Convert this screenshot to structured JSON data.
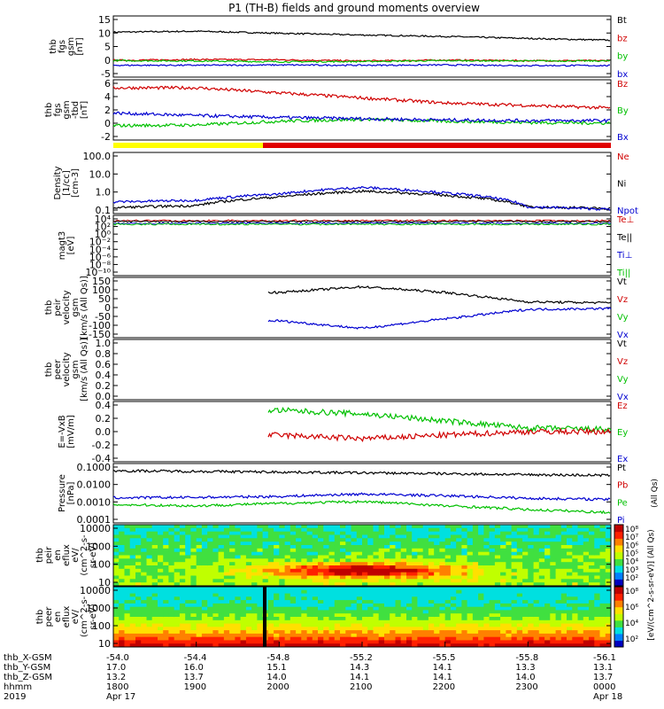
{
  "title": "P1 (TH-B) fields and ground moments overview",
  "panels": [
    {
      "id": "fgs-gsm",
      "ylabel": [
        "thb",
        "fgs",
        "gsm",
        "[nT]"
      ],
      "yticks": [
        "15",
        "10",
        "5",
        "0",
        "-5"
      ],
      "ylim": [
        -5,
        15
      ],
      "legend": [
        {
          "label": "Bt",
          "color": "#000000"
        },
        {
          "label": "bz",
          "color": "#d00000"
        },
        {
          "label": "by",
          "color": "#00c000"
        },
        {
          "label": "bx",
          "color": "#0000d0"
        }
      ]
    },
    {
      "id": "fgs-gse",
      "ylabel": [
        "thb",
        "fgs",
        "gsm",
        "-tbd",
        "[nT]"
      ],
      "yticks": [
        "6",
        "4",
        "2",
        "0",
        "-2"
      ],
      "ylim": [
        -3,
        6
      ],
      "legend": [
        {
          "label": "Bz",
          "color": "#d00000"
        },
        {
          "label": "By",
          "color": "#00c000"
        },
        {
          "label": "Bx",
          "color": "#0000d0"
        }
      ]
    },
    {
      "id": "density",
      "ylabel": [
        "Density",
        "[1/cc]",
        "[cm-3]"
      ],
      "yticks": [
        "100.0",
        "10.0",
        "1.0",
        "0.1"
      ],
      "log": true,
      "legend": [
        {
          "label": "Ne",
          "color": "#d00000"
        },
        {
          "label": "Ni",
          "color": "#000000"
        },
        {
          "label": "Npot",
          "color": "#0000d0"
        }
      ]
    },
    {
      "id": "temperature",
      "ylabel": [
        "magt3",
        "[eV]"
      ],
      "yticks": [
        "10⁴",
        "10²",
        "10⁰",
        "10⁻²",
        "10⁻⁴",
        "10⁻⁶",
        "10⁻⁸",
        "10⁻¹⁰"
      ],
      "log": true,
      "legend": [
        {
          "label": "Te⊥",
          "color": "#d00000"
        },
        {
          "label": "Te||",
          "color": "#000000"
        },
        {
          "label": "Ti⊥",
          "color": "#0000d0"
        },
        {
          "label": "Ti||",
          "color": "#00c000"
        }
      ]
    },
    {
      "id": "peir-velocity",
      "ylabel": [
        "thb",
        "peir",
        "velocity",
        "gsm",
        "[km/s (All Qs)]"
      ],
      "yticks": [
        "150",
        "100",
        "50",
        "0",
        "-50",
        "-100",
        "-150"
      ],
      "ylim": [
        -150,
        150
      ],
      "legend": [
        {
          "label": "Vt",
          "color": "#000000"
        },
        {
          "label": "Vz",
          "color": "#d00000"
        },
        {
          "label": "Vy",
          "color": "#00c000"
        },
        {
          "label": "Vx",
          "color": "#0000d0"
        }
      ]
    },
    {
      "id": "peer-velocity",
      "ylabel": [
        "thb",
        "peer",
        "velocity",
        "gsm",
        "[km/s (All Qs)]"
      ],
      "yticks": [
        "1.0",
        "0.8",
        "0.6",
        "0.4",
        "0.2",
        "0.0"
      ],
      "ylim": [
        0,
        1
      ],
      "legend": [
        {
          "label": "Vt",
          "color": "#000000"
        },
        {
          "label": "Vz",
          "color": "#d00000"
        },
        {
          "label": "Vy",
          "color": "#00c000"
        },
        {
          "label": "Vx",
          "color": "#0000d0"
        }
      ]
    },
    {
      "id": "efield",
      "ylabel": [
        "E=-VxB",
        "[mV/m]"
      ],
      "yticks": [
        "0.4",
        "0.2",
        "0.0",
        "-0.2",
        "-0.4"
      ],
      "ylim": [
        -0.4,
        0.4
      ],
      "legend": [
        {
          "label": "Ez",
          "color": "#d00000"
        },
        {
          "label": "Ey",
          "color": "#00c000"
        },
        {
          "label": "Ex",
          "color": "#0000d0"
        }
      ]
    },
    {
      "id": "pressure",
      "ylabel": [
        "Pressure",
        "[nPa]"
      ],
      "yticks": [
        "0.1000",
        "0.0100",
        "0.0010",
        "0.0001"
      ],
      "log": true,
      "right_label": "(All Qs)",
      "legend": [
        {
          "label": "Pt",
          "color": "#000000"
        },
        {
          "label": "Pb",
          "color": "#d00000"
        },
        {
          "label": "Pe",
          "color": "#00c000"
        },
        {
          "label": "Pi",
          "color": "#0000d0"
        }
      ]
    },
    {
      "id": "peir-eflux",
      "ylabel": [
        "thb",
        "peir",
        "en",
        "eflux",
        "eV/",
        "(cm^2-s-",
        "sr-eV)"
      ],
      "yticks": [
        "10000",
        "1000",
        "100",
        "10"
      ],
      "colorbar_ticks": [
        "10⁸",
        "10⁷",
        "10⁶",
        "10⁵",
        "10⁴",
        "10³",
        "10²"
      ]
    },
    {
      "id": "peer-eflux",
      "ylabel": [
        "thb",
        "peer",
        "en",
        "eflux",
        "eV/",
        "(cm^2-s-",
        "sr-eV)"
      ],
      "yticks": [
        "10000",
        "1000",
        "100",
        "10"
      ],
      "colorbar_ticks": [
        "10⁸",
        "10⁶",
        "10⁴",
        "10²"
      ]
    }
  ],
  "colorbar_label": "[eV/(cm^2-s-sr-eV)] (All Qs)",
  "row_labels": [
    "thb_X-GSM",
    "thb_Y-GSM",
    "thb_Z-GSM",
    "hhmm",
    "2019"
  ],
  "x_ticks": [
    {
      "x": "-54.0",
      "y": "17.0",
      "z": "13.2",
      "hhmm": "1800",
      "date": "Apr 17"
    },
    {
      "x": "-54.4",
      "y": "16.0",
      "z": "13.7",
      "hhmm": "1900",
      "date": ""
    },
    {
      "x": "-54.8",
      "y": "15.1",
      "z": "14.0",
      "hhmm": "2000",
      "date": ""
    },
    {
      "x": "-55.2",
      "y": "14.3",
      "z": "14.1",
      "hhmm": "2100",
      "date": ""
    },
    {
      "x": "-55.5",
      "y": "14.1",
      "z": "14.1",
      "hhmm": "2200",
      "date": ""
    },
    {
      "x": "-55.8",
      "y": "13.3",
      "z": "14.0",
      "hhmm": "2300",
      "date": ""
    },
    {
      "x": "-56.1",
      "y": "13.1",
      "z": "13.7",
      "hhmm": "0000",
      "date": "Apr 18"
    }
  ],
  "chart_data": {
    "type": "line",
    "title": "P1 (TH-B) fields and ground moments overview",
    "x_time_range": [
      "2019-04-17 18:00",
      "2019-04-18 00:00"
    ],
    "series": [
      {
        "name": "Bt",
        "panel": "fgs-gsm",
        "values_hhmm": [
          "1800",
          "1900",
          "2000",
          "2100",
          "2200",
          "2300",
          "0000"
        ],
        "values": [
          10,
          10.3,
          9.6,
          9.0,
          8.5,
          7.8,
          7.2
        ]
      },
      {
        "name": "bz",
        "panel": "fgs-gsm",
        "values_hhmm": [
          "1800",
          "1900",
          "2000",
          "2100",
          "2200",
          "2300",
          "0000"
        ],
        "values": [
          0.2,
          0.5,
          0.4,
          0,
          0.3,
          0.1,
          0.1
        ]
      },
      {
        "name": "by",
        "panel": "fgs-gsm",
        "values_hhmm": [
          "1800",
          "1900",
          "2000",
          "2100",
          "2200",
          "2300",
          "0000"
        ],
        "values": [
          0.1,
          0,
          -0.3,
          -0.2,
          0.1,
          0,
          0
        ]
      },
      {
        "name": "bx",
        "panel": "fgs-gsm",
        "values_hhmm": [
          "1800",
          "1900",
          "2000",
          "2100",
          "2200",
          "2300",
          "0000"
        ],
        "values": [
          -1.5,
          -1.5,
          -1.4,
          -1.5,
          -1.4,
          -1.6,
          -1.6
        ]
      },
      {
        "name": "Bz",
        "panel": "fgs-gse",
        "values_hhmm": [
          "1800",
          "1900",
          "2000",
          "2100",
          "2200",
          "2300",
          "0000"
        ],
        "values": [
          5.0,
          5.0,
          4.2,
          3.4,
          2.6,
          2.2,
          1.8
        ]
      },
      {
        "name": "By",
        "panel": "fgs-gse",
        "values_hhmm": [
          "1800",
          "1900",
          "2000",
          "2100",
          "2200",
          "2300",
          "0000"
        ],
        "values": [
          -1.0,
          -0.9,
          -0.3,
          0,
          -0.3,
          -0.5,
          -0.6
        ]
      },
      {
        "name": "Bx",
        "panel": "fgs-gse",
        "values_hhmm": [
          "1800",
          "1900",
          "2000",
          "2100",
          "2200",
          "2300",
          "0000"
        ],
        "values": [
          1.0,
          0.6,
          0.3,
          0.1,
          -0.1,
          -0.2,
          -0.2
        ]
      },
      {
        "name": "Ni",
        "panel": "density",
        "values_hhmm": [
          "1800",
          "1900",
          "2000",
          "2100",
          "2200",
          "2300",
          "0000"
        ],
        "values": [
          0.09,
          0.12,
          0.4,
          0.9,
          0.5,
          0.1,
          0.08
        ]
      },
      {
        "name": "Npot",
        "panel": "density",
        "values_hhmm": [
          "1800",
          "1900",
          "2000",
          "2100",
          "2200",
          "2300",
          "0000"
        ],
        "values": [
          0.2,
          0.25,
          0.6,
          1.5,
          0.7,
          0.1,
          0.07
        ]
      },
      {
        "name": "Vt",
        "panel": "peir-velocity",
        "values_hhmm": [
          "2000",
          "2100",
          "2200",
          "2300",
          "0000"
        ],
        "values": [
          80,
          110,
          80,
          30,
          25
        ]
      },
      {
        "name": "Vx",
        "panel": "peir-velocity",
        "values_hhmm": [
          "2000",
          "2100",
          "2200",
          "2300",
          "0000"
        ],
        "values": [
          -70,
          -110,
          -60,
          -10,
          -5
        ]
      },
      {
        "name": "Ey",
        "panel": "efield",
        "values_hhmm": [
          "2000",
          "2100",
          "2200",
          "2300",
          "0000"
        ],
        "values": [
          0.3,
          0.25,
          0.15,
          0.05,
          0.03
        ]
      },
      {
        "name": "Ez",
        "panel": "efield",
        "values_hhmm": [
          "2000",
          "2100",
          "2200",
          "2300",
          "0000"
        ],
        "values": [
          -0.05,
          -0.1,
          -0.05,
          0,
          0
        ]
      },
      {
        "name": "Pt",
        "panel": "pressure",
        "values_hhmm": [
          "1800",
          "1900",
          "2000",
          "2100",
          "2200",
          "2300",
          "0000"
        ],
        "values": [
          0.06,
          0.055,
          0.05,
          0.045,
          0.04,
          0.035,
          0.032
        ]
      },
      {
        "name": "Pi",
        "panel": "pressure",
        "values_hhmm": [
          "1800",
          "1900",
          "2000",
          "2100",
          "2200",
          "2300",
          "0000"
        ],
        "values": [
          0.0015,
          0.0016,
          0.0018,
          0.0025,
          0.002,
          0.0014,
          0.0012
        ]
      },
      {
        "name": "Pe",
        "panel": "pressure",
        "values_hhmm": [
          "1800",
          "1900",
          "2000",
          "2100",
          "2200",
          "2300",
          "0000"
        ],
        "values": [
          0.0006,
          0.0005,
          0.0007,
          0.0009,
          0.0005,
          0.0003,
          0.0002
        ]
      }
    ]
  }
}
